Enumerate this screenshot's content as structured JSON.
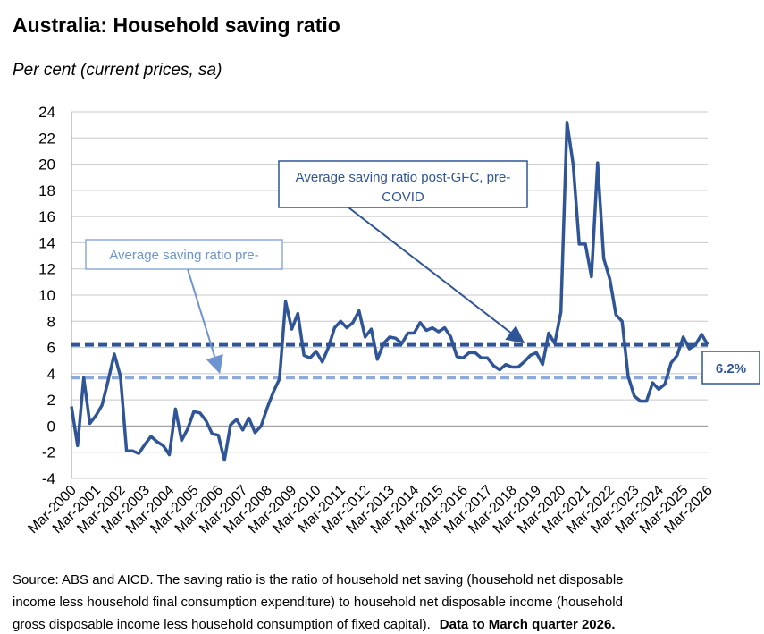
{
  "chart_data": {
    "type": "line",
    "title": "Australia: Household saving ratio",
    "subtitle": "Per cent (current prices, sa)",
    "categories": [
      "Mar-2000",
      null,
      null,
      null,
      "Mar-2001",
      null,
      null,
      null,
      "Mar-2002",
      null,
      null,
      null,
      "Mar-2003",
      null,
      null,
      null,
      "Mar-2004",
      null,
      null,
      null,
      "Mar-2005",
      null,
      null,
      null,
      "Mar-2006",
      null,
      null,
      null,
      "Mar-2007",
      null,
      null,
      null,
      "Mar-2008",
      null,
      null,
      null,
      "Mar-2009",
      null,
      null,
      null,
      "Mar-2010",
      null,
      null,
      null,
      "Mar-2011",
      null,
      null,
      null,
      "Mar-2012",
      null,
      null,
      null,
      "Mar-2013",
      null,
      null,
      null,
      "Mar-2014",
      null,
      null,
      null,
      "Mar-2015",
      null,
      null,
      null,
      "Mar-2016",
      null,
      null,
      null,
      "Mar-2017",
      null,
      null,
      null,
      "Mar-2018",
      null,
      null,
      null,
      "Mar-2019",
      null,
      null,
      null,
      "Mar-2020",
      null,
      null,
      null,
      "Mar-2021",
      null,
      null,
      null,
      "Mar-2022",
      null,
      null,
      null,
      "Mar-2023",
      null,
      null,
      null,
      "Mar-2024",
      null,
      null,
      null,
      "Mar-2025",
      null,
      null,
      null,
      "Mar-2026"
    ],
    "series": [
      {
        "name": "Household saving ratio",
        "color": "#2f5597",
        "values": [
          1.5,
          -1.5,
          3.7,
          0.2,
          0.8,
          1.6,
          3.5,
          5.5,
          3.8,
          -1.9,
          -1.9,
          -2.1,
          -1.4,
          -0.8,
          -1.2,
          -1.5,
          -2.2,
          1.3,
          -1.1,
          -0.2,
          1.1,
          1.0,
          0.4,
          -0.6,
          -0.7,
          -2.6,
          0.1,
          0.5,
          -0.3,
          0.6,
          -0.5,
          0.0,
          1.4,
          2.6,
          3.6,
          9.5,
          7.4,
          8.6,
          5.4,
          5.2,
          5.7,
          4.9,
          6.0,
          7.5,
          8.0,
          7.5,
          7.9,
          8.8,
          6.8,
          7.4,
          5.1,
          6.3,
          6.8,
          6.7,
          6.3,
          7.1,
          7.1,
          7.9,
          7.3,
          7.5,
          7.2,
          7.5,
          6.8,
          5.3,
          5.2,
          5.6,
          5.6,
          5.2,
          5.2,
          4.6,
          4.3,
          4.7,
          4.5,
          4.5,
          4.9,
          5.4,
          5.6,
          4.7,
          7.1,
          6.3,
          8.7,
          23.2,
          20.0,
          13.9,
          13.9,
          11.4,
          20.1,
          12.8,
          11.2,
          8.5,
          8.0,
          3.8,
          2.3,
          1.9,
          1.9,
          3.3,
          2.8,
          3.2,
          4.8,
          5.4,
          6.8,
          5.9,
          6.2,
          7.0,
          6.2
        ]
      }
    ],
    "reference_lines": [
      {
        "value": 6.2,
        "color": "#2f5597",
        "label": "6.2%",
        "annotation": [
          "Average saving ratio post-GFC, pre-",
          "COVID"
        ]
      },
      {
        "value": 3.7,
        "color": "#8eaadb",
        "annotation": [
          "Average saving ratio pre-"
        ]
      }
    ],
    "ylim": [
      -4,
      24
    ],
    "yticks": [
      -4,
      -2,
      0,
      2,
      4,
      6,
      8,
      10,
      12,
      14,
      16,
      18,
      20,
      22,
      24
    ],
    "grid": true,
    "source": [
      "Source: ABS and AICD.  The saving ratio is the ratio of household net saving (household net disposable",
      "income less household final consumption expenditure) to household net disposable income (household",
      "gross disposable income less household consumption of fixed capital)."
    ],
    "source_note": "Data to March quarter 2026."
  }
}
